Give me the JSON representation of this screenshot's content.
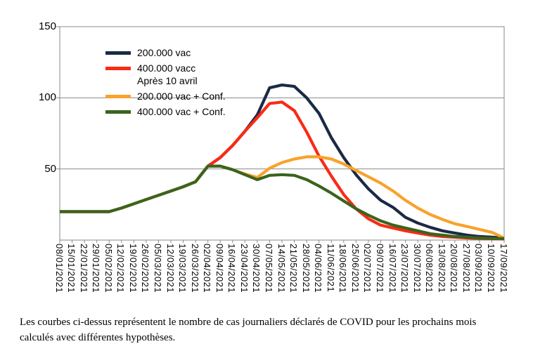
{
  "figure": {
    "background": "#ffffff"
  },
  "legend": {
    "entries": [
      {
        "label": "200.000 vac",
        "sublabel": "",
        "color": "#1b2a45"
      },
      {
        "label": "400.000 vacc",
        "sublabel": "Après 10 avril",
        "color": "#fa2a16"
      },
      {
        "label": "200.000 vac + Conf.",
        "sublabel": "",
        "color": "#f9a22c"
      },
      {
        "label": "400.000 vac + Conf.",
        "sublabel": "",
        "color": "#3a641e"
      }
    ]
  },
  "caption": {
    "text": "Les courbes ci-dessus représentent le nombre de cas journaliers déclarés de COVID pour les prochains mois calculés avec différentes hypothèses."
  },
  "chart_data": {
    "type": "line",
    "title": "",
    "xlabel": "",
    "ylabel": "",
    "ylim": [
      0,
      150
    ],
    "yticks": [
      50,
      100,
      150
    ],
    "grid": true,
    "legend_position": "inside-top-left",
    "axis_color": "#8a8a8a",
    "categories": [
      "08/01/2021",
      "15/01/2021",
      "22/01/2021",
      "29/01/2021",
      "05/02/2021",
      "12/02/2021",
      "19/02/2021",
      "26/02/2021",
      "05/03/2021",
      "12/03/2021",
      "19/03/2021",
      "26/03/2021",
      "02/04/2021",
      "09/04/2021",
      "16/04/2021",
      "23/04/2021",
      "30/04/2021",
      "07/05/2021",
      "14/05/2021",
      "21/05/2021",
      "28/05/2021",
      "04/06/2021",
      "11/06/2021",
      "18/06/2021",
      "25/06/2021",
      "02/07/2021",
      "09/07/2021",
      "16/07/2021",
      "23/07/2021",
      "30/07/2021",
      "06/08/2021",
      "13/08/2021",
      "20/08/2021",
      "27/08/2021",
      "03/09/2021",
      "10/09/2021",
      "17/09/2021"
    ],
    "series": [
      {
        "name": "200.000 vac",
        "color": "#1b2a45",
        "values": [
          20,
          20,
          20,
          20,
          20,
          22.5,
          25.5,
          28.5,
          31.5,
          34.5,
          37.5,
          41,
          52,
          58,
          66.5,
          76.5,
          88,
          107,
          109,
          108,
          100,
          89,
          72,
          58,
          46,
          36,
          28,
          23,
          16,
          12,
          9,
          6.5,
          5,
          3.5,
          2.5,
          2,
          1.5
        ]
      },
      {
        "name": "400.000 vacc Après 10 avril",
        "color": "#fa2a16",
        "values": [
          20,
          20,
          20,
          20,
          20,
          22.5,
          25.5,
          28.5,
          31.5,
          34.5,
          37.5,
          41,
          52,
          58,
          66.5,
          76.5,
          86,
          96,
          97,
          91,
          76,
          59,
          45,
          32,
          22,
          15,
          10.5,
          8.5,
          6.5,
          5,
          3.5,
          2.5,
          2,
          1.5,
          1.2,
          1,
          0.8
        ]
      },
      {
        "name": "200.000 vac + Conf.",
        "color": "#f9a22c",
        "values": [
          20,
          20,
          20,
          20,
          20,
          22.5,
          25.5,
          28.5,
          31.5,
          34.5,
          37.5,
          41,
          52,
          52,
          49.5,
          46.5,
          44,
          50.5,
          54.5,
          57,
          58.5,
          58.5,
          57,
          53.5,
          49,
          44.5,
          40,
          34.5,
          28,
          22.5,
          18,
          14.5,
          11.5,
          9.5,
          7.5,
          5.5,
          1.5
        ]
      },
      {
        "name": "400.000 vac + Conf.",
        "color": "#3a641e",
        "values": [
          20,
          20,
          20,
          20,
          20,
          22.5,
          25.5,
          28.5,
          31.5,
          34.5,
          37.5,
          41,
          52,
          52,
          49.5,
          46,
          42.5,
          45.5,
          46,
          45.5,
          42.5,
          38,
          33,
          27.5,
          22,
          17.5,
          13.5,
          10.5,
          8.5,
          6.5,
          4.5,
          3.5,
          2.5,
          2,
          1.5,
          1.2,
          1
        ]
      }
    ]
  }
}
